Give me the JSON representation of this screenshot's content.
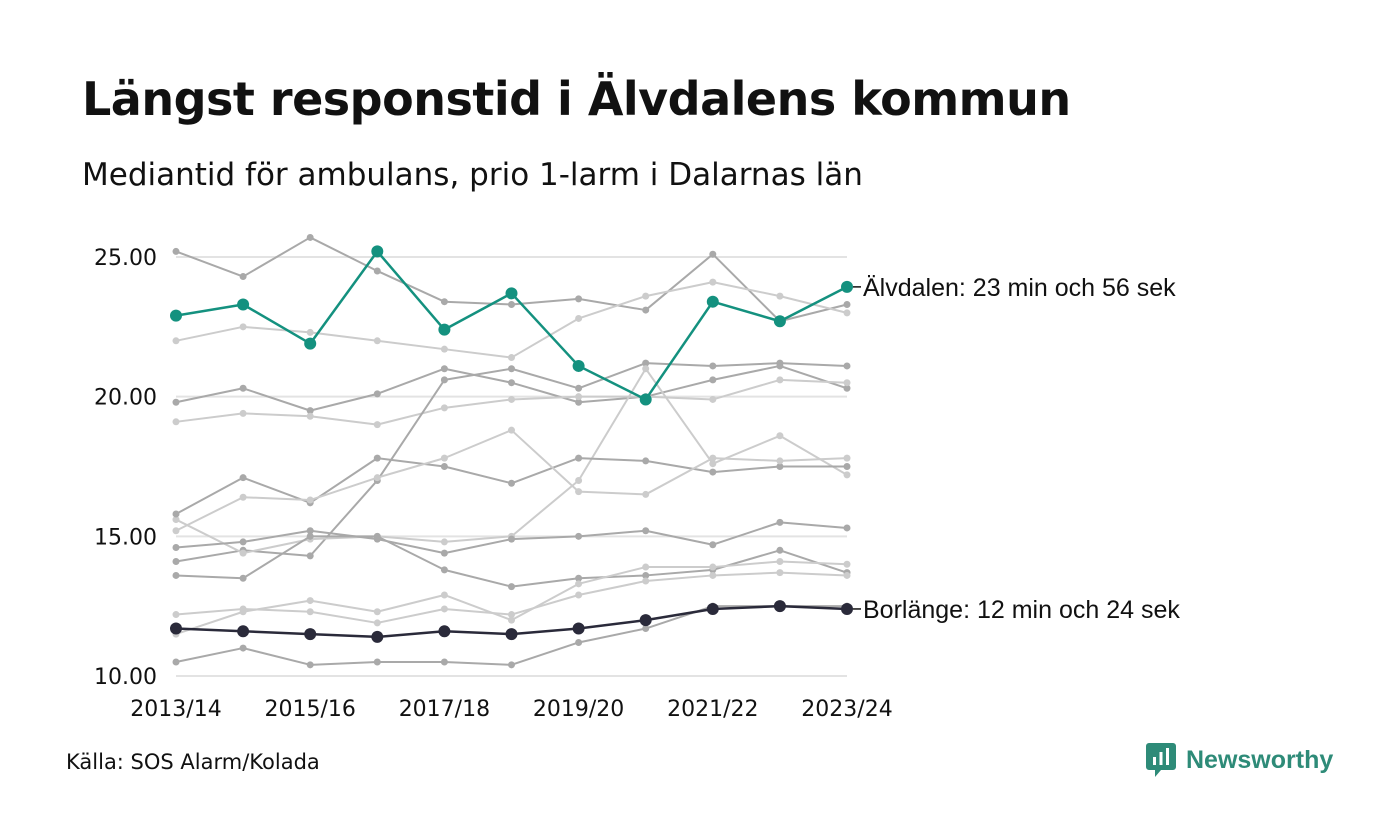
{
  "header": {
    "title": "Längst responstid i Älvdalens kommun",
    "subtitle": "Mediantid för ambulans, prio 1-larm i Dalarnas län"
  },
  "footer": {
    "source": "Källa: SOS Alarm/Kolada",
    "brand_name": "Newsworthy",
    "brand_icon": "bar-chart-speech-bubble-icon",
    "brand_color": "#2e8b78"
  },
  "chart_data": {
    "type": "line",
    "ylim": [
      10,
      25
    ],
    "yticks": [
      {
        "value": 10,
        "label": "10.00"
      },
      {
        "value": 15,
        "label": "15.00"
      },
      {
        "value": 20,
        "label": "20.00"
      },
      {
        "value": 25,
        "label": "25.00"
      }
    ],
    "categories": [
      "2013/14",
      "2014/15",
      "2015/16",
      "2016/17",
      "2017/18",
      "2018/19",
      "2019/20",
      "2020/21",
      "2021/22",
      "2022/23",
      "2023/24"
    ],
    "xtick_labels": [
      "2013/14",
      "",
      "2015/16",
      "",
      "2017/18",
      "",
      "2019/20",
      "",
      "2021/22",
      "",
      "2023/24"
    ],
    "grid": true,
    "background_series": [
      {
        "color": "#a9a9a9",
        "values": [
          25.2,
          24.3,
          25.7,
          24.5,
          23.4,
          23.3,
          23.5,
          23.1,
          25.1,
          22.7,
          23.3
        ]
      },
      {
        "color": "#cccccc",
        "values": [
          22.0,
          22.5,
          22.3,
          22.0,
          21.7,
          21.4,
          22.8,
          23.6,
          24.1,
          23.6,
          23.0
        ]
      },
      {
        "color": "#a9a9a9",
        "values": [
          19.8,
          20.3,
          19.5,
          20.1,
          21.0,
          20.5,
          19.8,
          20.0,
          20.6,
          21.1,
          20.3
        ]
      },
      {
        "color": "#cccccc",
        "values": [
          19.1,
          19.4,
          19.3,
          19.0,
          19.6,
          19.9,
          20.0,
          20.0,
          19.9,
          20.6,
          20.5
        ]
      },
      {
        "color": "#a9a9a9",
        "values": [
          14.1,
          14.5,
          14.3,
          17.0,
          20.6,
          21.0,
          20.3,
          21.2,
          21.1,
          21.2,
          21.1
        ]
      },
      {
        "color": "#cccccc",
        "values": [
          15.6,
          14.4,
          14.9,
          15.0,
          14.8,
          15.0,
          17.0,
          21.0,
          17.6,
          18.6,
          17.2
        ]
      },
      {
        "color": "#a9a9a9",
        "values": [
          15.8,
          17.1,
          16.2,
          17.8,
          17.5,
          16.9,
          17.8,
          17.7,
          17.3,
          17.5,
          17.5
        ]
      },
      {
        "color": "#cccccc",
        "values": [
          15.2,
          16.4,
          16.3,
          17.1,
          17.8,
          18.8,
          16.6,
          16.5,
          17.8,
          17.7,
          17.8
        ]
      },
      {
        "color": "#a9a9a9",
        "values": [
          14.6,
          14.8,
          15.2,
          14.9,
          14.4,
          14.9,
          15.0,
          15.2,
          14.7,
          15.5,
          15.3
        ]
      },
      {
        "color": "#a9a9a9",
        "values": [
          13.6,
          13.5,
          15.0,
          15.0,
          13.8,
          13.2,
          13.5,
          13.6,
          13.8,
          14.5,
          13.7
        ]
      },
      {
        "color": "#cccccc",
        "values": [
          11.5,
          12.3,
          12.7,
          12.3,
          12.9,
          12.0,
          13.3,
          13.9,
          13.9,
          14.1,
          14.0
        ]
      },
      {
        "color": "#cccccc",
        "values": [
          12.2,
          12.4,
          12.3,
          11.9,
          12.4,
          12.2,
          12.9,
          13.4,
          13.6,
          13.7,
          13.6
        ]
      },
      {
        "color": "#a9a9a9",
        "values": [
          10.5,
          11.0,
          10.4,
          10.5,
          10.5,
          10.4,
          11.2,
          11.7,
          12.5,
          12.5,
          12.5
        ]
      }
    ],
    "series": [
      {
        "name": "Älvdalen",
        "color": "#14917f",
        "values": [
          22.9,
          23.3,
          21.9,
          25.2,
          22.4,
          23.7,
          21.1,
          19.9,
          23.4,
          22.7,
          23.93
        ],
        "end_label": "Älvdalen: 23 min och 56 sek"
      },
      {
        "name": "Borlänge",
        "color": "#2a2a3a",
        "values": [
          11.7,
          11.6,
          11.5,
          11.4,
          11.6,
          11.5,
          11.7,
          12.0,
          12.4,
          12.5,
          12.4
        ],
        "end_label": "Borlänge: 12 min och 24 sek"
      }
    ]
  }
}
